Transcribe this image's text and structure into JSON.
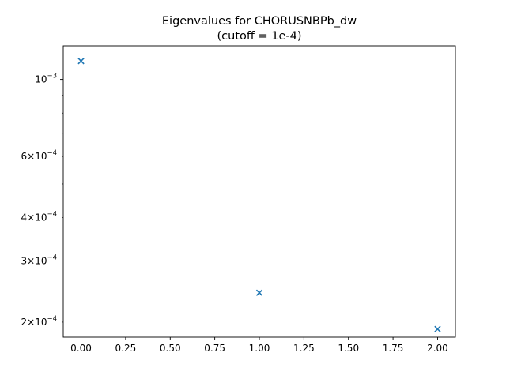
{
  "chart_data": {
    "type": "scatter",
    "title": "Eigenvalues for CHORUSNBPb_dw",
    "subtitle": "(cutoff = 1e-4)",
    "xlabel": "",
    "ylabel": "",
    "xlim": [
      -0.1,
      2.1
    ],
    "ylim": [
      0.000181,
      0.00125
    ],
    "yscale": "log",
    "grid": false,
    "marker": "x",
    "series": [
      {
        "color": "#1f77b4",
        "x": [
          0,
          1,
          2
        ],
        "y": [
          0.00113,
          0.000243,
          0.000191
        ]
      }
    ],
    "x_ticks": [
      {
        "value": 0.0,
        "label": "0.00"
      },
      {
        "value": 0.25,
        "label": "0.25"
      },
      {
        "value": 0.5,
        "label": "0.50"
      },
      {
        "value": 0.75,
        "label": "0.75"
      },
      {
        "value": 1.0,
        "label": "1.00"
      },
      {
        "value": 1.25,
        "label": "1.25"
      },
      {
        "value": 1.5,
        "label": "1.50"
      },
      {
        "value": 1.75,
        "label": "1.75"
      },
      {
        "value": 2.0,
        "label": "2.00"
      }
    ],
    "y_major_ticks": [
      {
        "value": 0.001,
        "mantissa": "",
        "exponent": "−3"
      }
    ],
    "y_minor_ticks": [
      {
        "value": 0.0002,
        "mantissa": "2",
        "exponent": "−4"
      },
      {
        "value": 0.0003,
        "mantissa": "3",
        "exponent": "−4"
      },
      {
        "value": 0.0004,
        "mantissa": "4",
        "exponent": "−4"
      },
      {
        "value": 0.0005,
        "mantissa": "",
        "exponent": ""
      },
      {
        "value": 0.0006,
        "mantissa": "6",
        "exponent": "−4"
      },
      {
        "value": 0.0007,
        "mantissa": "",
        "exponent": ""
      },
      {
        "value": 0.0008,
        "mantissa": "",
        "exponent": ""
      },
      {
        "value": 0.0009,
        "mantissa": "",
        "exponent": ""
      }
    ]
  }
}
